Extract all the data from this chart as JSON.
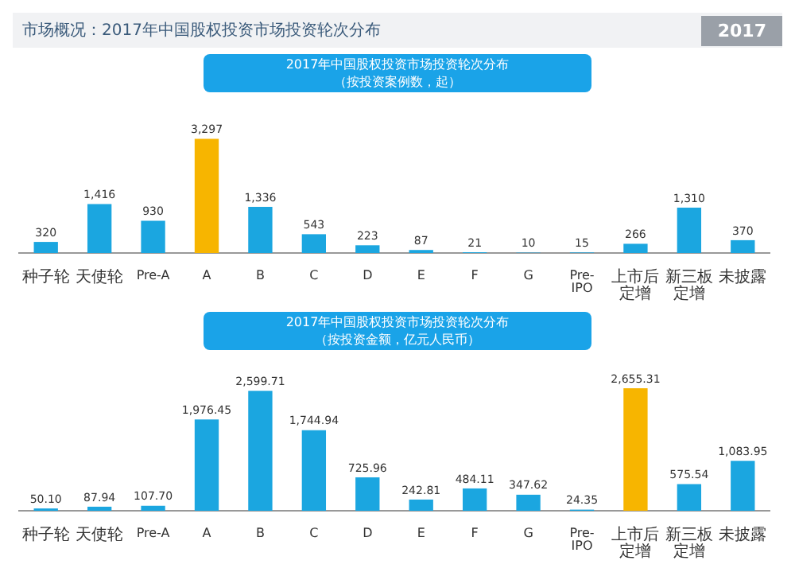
{
  "chart_data": [
    {
      "type": "other",
      "title": "市场概况：2017年中国股权投资市场投资轮次分布",
      "annotations": [
        "2017"
      ]
    },
    {
      "type": "bar",
      "title": "2017年中国股权投资市场投资轮次分布",
      "subtitle": "（按投资案例数，起）",
      "categories": [
        "种子轮",
        "天使轮",
        "Pre-A",
        "A",
        "B",
        "C",
        "D",
        "E",
        "F",
        "G",
        "Pre-IPO",
        "上市后定增",
        "新三板定增",
        "未披露"
      ],
      "values": [
        320,
        1416,
        930,
        3297,
        1336,
        543,
        223,
        87,
        21,
        10,
        15,
        266,
        1310,
        370
      ],
      "colors": [
        "#1ba6e0",
        "#1ba6e0",
        "#1ba6e0",
        "#f7b500",
        "#1ba6e0",
        "#1ba6e0",
        "#1ba6e0",
        "#1ba6e0",
        "#1ba6e0",
        "#1ba6e0",
        "#1ba6e0",
        "#1ba6e0",
        "#1ba6e0",
        "#1ba6e0"
      ],
      "value_labels": [
        "320",
        "1,416",
        "930",
        "3,297",
        "1,336",
        "543",
        "223",
        "87",
        "21",
        "10",
        "15",
        "266",
        "1,310",
        "370"
      ]
    },
    {
      "type": "bar",
      "title": "2017年中国股权投资市场投资轮次分布",
      "subtitle": "（按投资金额，亿元人民币）",
      "categories": [
        "种子轮",
        "天使轮",
        "Pre-A",
        "A",
        "B",
        "C",
        "D",
        "E",
        "F",
        "G",
        "Pre-IPO",
        "上市后定增",
        "新三板定增",
        "未披露"
      ],
      "values": [
        50.1,
        87.94,
        107.7,
        1976.45,
        2599.71,
        1744.94,
        725.96,
        242.81,
        484.11,
        347.62,
        24.35,
        2655.31,
        575.54,
        1083.95
      ],
      "colors": [
        "#1ba6e0",
        "#1ba6e0",
        "#1ba6e0",
        "#1ba6e0",
        "#1ba6e0",
        "#1ba6e0",
        "#1ba6e0",
        "#1ba6e0",
        "#1ba6e0",
        "#1ba6e0",
        "#1ba6e0",
        "#f7b500",
        "#1ba6e0",
        "#1ba6e0"
      ],
      "value_labels": [
        "50.10",
        "87.94",
        "107.70",
        "1,976.45",
        "2,599.71",
        "1,744.94",
        "725.96",
        "242.81",
        "484.11",
        "347.62",
        "24.35",
        "2,655.31",
        "575.54",
        "1,083.95"
      ]
    }
  ]
}
